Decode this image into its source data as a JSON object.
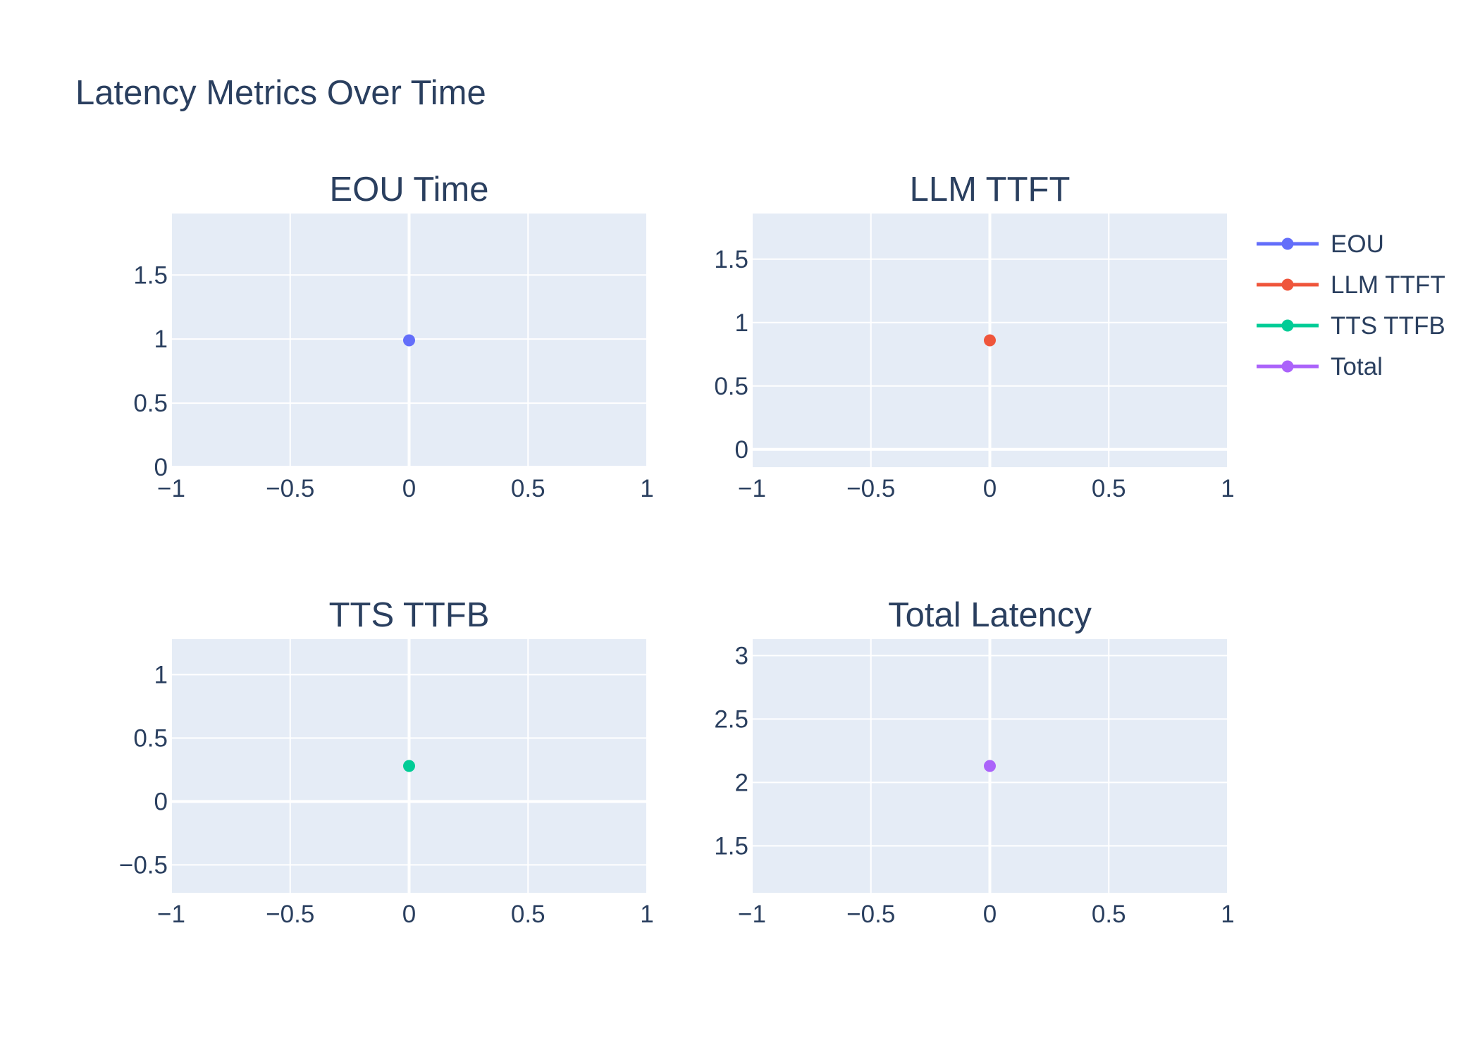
{
  "figure": {
    "title": "Latency Metrics Over Time",
    "background": "#ffffff",
    "plot_bg": "#e5ecf6",
    "grid_color": "#ffffff",
    "text_color": "#2a3f5f"
  },
  "legend": {
    "placement": "right",
    "items": [
      {
        "label": "EOU",
        "color": "#636efa"
      },
      {
        "label": "LLM TTFT",
        "color": "#ef553b"
      },
      {
        "label": "TTS TTFB",
        "color": "#00cc96"
      },
      {
        "label": "Total",
        "color": "#ab63fa"
      }
    ]
  },
  "chart_data": [
    {
      "type": "line",
      "title": "EOU Time",
      "series": [
        {
          "name": "EOU",
          "x": [
            0
          ],
          "y": [
            0.99
          ],
          "color": "#636efa"
        }
      ],
      "xlim": [
        -1,
        1
      ],
      "ylim": [
        0,
        1.98
      ],
      "xticks": [
        -1,
        -0.5,
        0,
        0.5,
        1
      ],
      "xtick_labels": [
        "−1",
        "−0.5",
        "0",
        "0.5",
        "1"
      ],
      "yticks": [
        0,
        0.5,
        1,
        1.5
      ],
      "ytick_labels": [
        "0",
        "0.5",
        "1",
        "1.5"
      ],
      "grid": true
    },
    {
      "type": "line",
      "title": "LLM TTFT",
      "series": [
        {
          "name": "LLM TTFT",
          "x": [
            0
          ],
          "y": [
            0.86
          ],
          "color": "#ef553b"
        }
      ],
      "xlim": [
        -1,
        1
      ],
      "ylim": [
        -0.14,
        1.86
      ],
      "xticks": [
        -1,
        -0.5,
        0,
        0.5,
        1
      ],
      "xtick_labels": [
        "−1",
        "−0.5",
        "0",
        "0.5",
        "1"
      ],
      "yticks": [
        0,
        0.5,
        1,
        1.5
      ],
      "ytick_labels": [
        "0",
        "0.5",
        "1",
        "1.5"
      ],
      "grid": true
    },
    {
      "type": "line",
      "title": "TTS TTFB",
      "series": [
        {
          "name": "TTS TTFB",
          "x": [
            0
          ],
          "y": [
            0.28
          ],
          "color": "#00cc96"
        }
      ],
      "xlim": [
        -1,
        1
      ],
      "ylim": [
        -0.72,
        1.28
      ],
      "xticks": [
        -1,
        -0.5,
        0,
        0.5,
        1
      ],
      "xtick_labels": [
        "−1",
        "−0.5",
        "0",
        "0.5",
        "1"
      ],
      "yticks": [
        -0.5,
        0,
        0.5,
        1
      ],
      "ytick_labels": [
        "−0.5",
        "0",
        "0.5",
        "1"
      ],
      "grid": true
    },
    {
      "type": "line",
      "title": "Total Latency",
      "series": [
        {
          "name": "Total",
          "x": [
            0
          ],
          "y": [
            2.13
          ],
          "color": "#ab63fa"
        }
      ],
      "xlim": [
        -1,
        1
      ],
      "ylim": [
        1.13,
        3.13
      ],
      "xticks": [
        -1,
        -0.5,
        0,
        0.5,
        1
      ],
      "xtick_labels": [
        "−1",
        "−0.5",
        "0",
        "0.5",
        "1"
      ],
      "yticks": [
        1.5,
        2,
        2.5,
        3
      ],
      "ytick_labels": [
        "1.5",
        "2",
        "2.5",
        "3"
      ],
      "grid": true
    }
  ]
}
